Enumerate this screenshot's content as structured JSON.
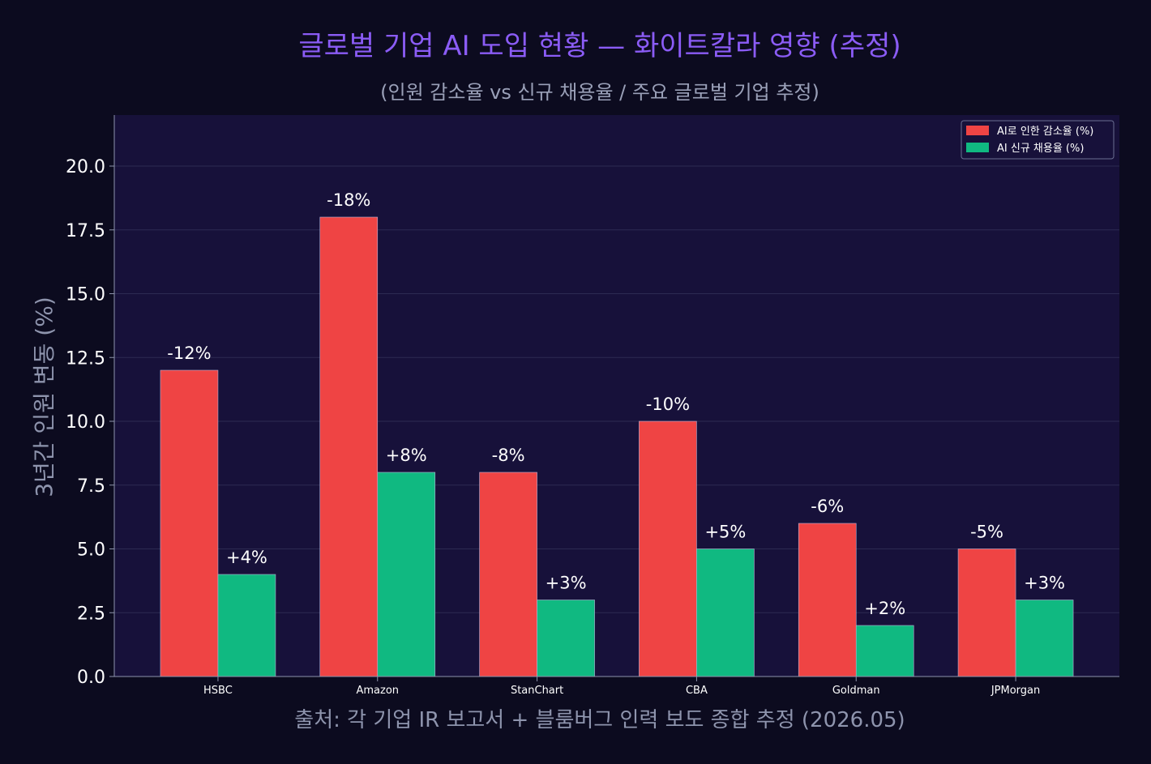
{
  "chart_data": {
    "type": "bar",
    "title": "글로벌 기업 AI 도입 현황 — 화이트칼라 영향 (추정)",
    "subtitle": "(인원 감소율 vs 신규 채용율 / 주요 글로벌 기업 추정)",
    "xlabel": "출처: 각 기업 IR 보고서 + 블룸버그 인력 보도 종합 추정 (2026.05)",
    "ylabel": "3년간 인원 변동 (%)",
    "categories": [
      "HSBC",
      "Amazon",
      "StanChart",
      "CBA",
      "Goldman",
      "JPMorgan"
    ],
    "series": [
      {
        "name": "AI로 인한 감소율 (%)",
        "values": [
          12,
          18,
          8,
          10,
          6,
          5
        ],
        "labels": [
          "-12%",
          "-18%",
          "-8%",
          "-10%",
          "-6%",
          "-5%"
        ],
        "color": "#ef4444"
      },
      {
        "name": "AI 신규 채용율 (%)",
        "values": [
          4,
          8,
          3,
          5,
          2,
          3
        ],
        "labels": [
          "+4%",
          "+8%",
          "+3%",
          "+5%",
          "+2%",
          "+3%"
        ],
        "color": "#10b981"
      }
    ],
    "ylim": [
      0,
      22
    ],
    "yticks": [
      "0.0",
      "2.5",
      "5.0",
      "7.5",
      "10.0",
      "12.5",
      "15.0",
      "17.5",
      "20.0"
    ],
    "grid": true,
    "legend_position": "top-right",
    "colors": {
      "page_background": "#0c0b1f",
      "plot_background": "#17113a",
      "grid": "#2d2a52",
      "title": "#8b5cf6"
    }
  }
}
